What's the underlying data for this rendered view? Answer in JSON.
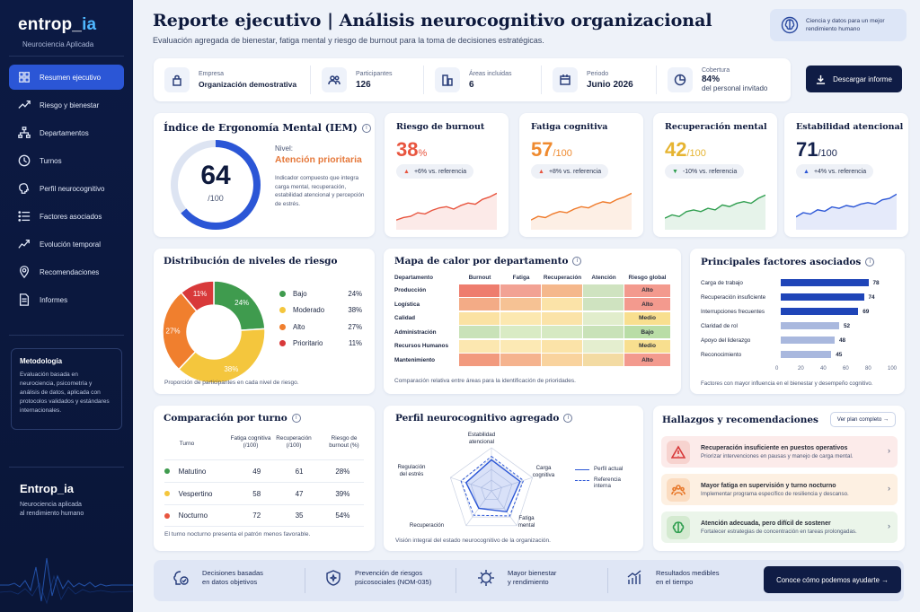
{
  "brand": {
    "name_main": "entrop_",
    "name_accent": "ia",
    "subtitle": "Neurociencia Aplicada"
  },
  "nav": [
    {
      "label": "Resumen ejecutivo",
      "icon": "grid-icon",
      "active": true
    },
    {
      "label": "Riesgo y bienestar",
      "icon": "trend-icon"
    },
    {
      "label": "Departamentos",
      "icon": "org-chart-icon"
    },
    {
      "label": "Turnos",
      "icon": "clock-icon"
    },
    {
      "label": "Perfil neurocognitivo",
      "icon": "brain-icon"
    },
    {
      "label": "Factores asociados",
      "icon": "list-icon"
    },
    {
      "label": "Evolución temporal",
      "icon": "line-chart-icon"
    },
    {
      "label": "Recomendaciones",
      "icon": "bulb-icon"
    },
    {
      "label": "Informes",
      "icon": "document-icon"
    }
  ],
  "methodology": {
    "title": "Metodología",
    "text": "Evaluación basada en neurociencia, psicometría y análisis de datos, aplicada con protocolos validados y estándares internacionales."
  },
  "side_brand": {
    "title": "Entrop_ia",
    "line1": "Neurociencia aplicada",
    "line2": "al rendimiento humano"
  },
  "header": {
    "title": "Reporte ejecutivo | Análisis neurocognitivo organizacional",
    "subtitle": "Evaluación agregada de bienestar, fatiga mental y riesgo de burnout para la toma de decisiones estratégicas.",
    "badge_line1": "Ciencia y datos para un mejor",
    "badge_line2": "rendimiento humano"
  },
  "info": {
    "empresa_label": "Empresa",
    "empresa": "Organización demostrativa",
    "participantes_label": "Participantes",
    "participantes": "126",
    "areas_label": "Áreas incluidas",
    "areas": "6",
    "periodo_label": "Periodo",
    "periodo": "Junio 2026",
    "cobertura_label": "Cobertura",
    "cobertura": "84%",
    "cobertura_extra": "del personal invitado"
  },
  "download_label": "Descargar informe",
  "iem": {
    "title": "Índice de Ergonomía Mental (IEM)",
    "value": "64",
    "max": "/100",
    "fraction": 0.64,
    "level_label": "Nivel:",
    "level": "Atención prioritaria",
    "description": "Indicador compuesto que integra carga mental, recuperación, estabilidad atencional y percepción de estrés."
  },
  "kpis": [
    {
      "title": "Riesgo de burnout",
      "value": "38",
      "unit": "%",
      "color": "#e8553f",
      "delta": "+6% vs. referencia",
      "dir": "up",
      "tri_color": "#e8553f",
      "spark": [
        8,
        10,
        11,
        14,
        13,
        16,
        18,
        19,
        17,
        20,
        22,
        21,
        25,
        27,
        30
      ],
      "spark_color": "#e8553f"
    },
    {
      "title": "Fatiga cognitiva",
      "value": "57",
      "unit": "/100",
      "color": "#ef8a2f",
      "delta": "+8% vs. referencia",
      "dir": "up",
      "tri_color": "#e8553f",
      "spark": [
        8,
        11,
        10,
        13,
        15,
        14,
        17,
        19,
        18,
        21,
        23,
        22,
        25,
        27,
        30
      ],
      "spark_color": "#ef7a2a"
    },
    {
      "title": "Recuperación mental",
      "value": "42",
      "unit": "/100",
      "color": "#e6b431",
      "delta": "-10% vs. referencia",
      "dir": "down",
      "tri_color": "#2f9e4f",
      "spark": [
        7,
        9,
        8,
        11,
        12,
        11,
        13,
        12,
        15,
        14,
        16,
        17,
        16,
        19,
        21
      ],
      "spark_color": "#2f9e4f"
    },
    {
      "title": "Estabilidad atencional",
      "value": "71",
      "unit": "/100",
      "color": "#14224d",
      "delta": "+4% vs. referencia",
      "dir": "up",
      "tri_color": "#2b56d6",
      "spark": [
        9,
        12,
        11,
        14,
        13,
        16,
        15,
        17,
        16,
        18,
        19,
        18,
        21,
        22,
        25
      ],
      "spark_color": "#2b56d6"
    }
  ],
  "distribution": {
    "title": "Distribución de niveles de riesgo",
    "note": "Proporción de participantes en cada nivel de riesgo.",
    "items": [
      {
        "label": "Bajo",
        "value": 24,
        "pct": "24%",
        "color": "#3f9b4e"
      },
      {
        "label": "Moderado",
        "value": 38,
        "pct": "38%",
        "color": "#f4c63d"
      },
      {
        "label": "Alto",
        "value": 27,
        "pct": "27%",
        "color": "#f07f2e"
      },
      {
        "label": "Prioritario",
        "value": 11,
        "pct": "11%",
        "color": "#d8393a"
      }
    ]
  },
  "heatmap": {
    "title": "Mapa de calor por departamento",
    "note": "Comparación relativa entre áreas para la identificación de prioridades.",
    "columns": [
      "Departamento",
      "Burnout",
      "Fatiga",
      "Recuperación",
      "Atención",
      "Riesgo global"
    ],
    "rows": [
      {
        "dept": "Producción",
        "cells": [
          "#ee7d6e",
          "#f2a294",
          "#f5b88c",
          "#cfe3c0"
        ],
        "global": "Alto",
        "global_color": "#f39a8e"
      },
      {
        "dept": "Logística",
        "cells": [
          "#f3ab86",
          "#f6c294",
          "#fbe3a8",
          "#cfe3c0"
        ],
        "global": "Alto",
        "global_color": "#f39a8e"
      },
      {
        "dept": "Calidad",
        "cells": [
          "#fbe2a3",
          "#fce8b0",
          "#fbe3a8",
          "#e1edcc"
        ],
        "global": "Medio",
        "global_color": "#f8df8f"
      },
      {
        "dept": "Administración",
        "cells": [
          "#c9e2b8",
          "#d9ebc4",
          "#d6e9c2",
          "#c9e2b8"
        ],
        "global": "Bajo",
        "global_color": "#b9dda6"
      },
      {
        "dept": "Recursos Humanos",
        "cells": [
          "#fce7b0",
          "#fce9b4",
          "#fbe3a8",
          "#e4eecf"
        ],
        "global": "Medio",
        "global_color": "#f8df8f"
      },
      {
        "dept": "Mantenimiento",
        "cells": [
          "#f29a7e",
          "#f5b38e",
          "#f9d39e",
          "#f3dba3"
        ],
        "global": "Alto",
        "global_color": "#f39a8e"
      }
    ]
  },
  "factors": {
    "title": "Principales factores asociados",
    "note": "Factores con mayor influencia en el bienestar y desempeño cognitivo.",
    "axis": [
      "0",
      "20",
      "40",
      "60",
      "80",
      "100"
    ],
    "items": [
      {
        "label": "Carga de trabajo",
        "value": 78,
        "color": "#1f45b8"
      },
      {
        "label": "Recuperación insuficiente",
        "value": 74,
        "color": "#1f45b8"
      },
      {
        "label": "Interrupciones frecuentes",
        "value": 69,
        "color": "#1f45b8"
      },
      {
        "label": "Claridad de rol",
        "value": 52,
        "color": "#a9b8de"
      },
      {
        "label": "Apoyo del liderazgo",
        "value": 48,
        "color": "#a9b8de"
      },
      {
        "label": "Reconocimiento",
        "value": 45,
        "color": "#a9b8de"
      }
    ]
  },
  "shift": {
    "title": "Comparación por turno",
    "note": "El turno nocturno presenta el patrón menos favorable.",
    "headers": [
      "Turno",
      "Fatiga cognitiva (/100)",
      "Recuperación (/100)",
      "Riesgo de burnout (%)"
    ],
    "rows": [
      {
        "name": "Matutino",
        "color": "#3f9b4e",
        "fatiga": "49",
        "recup": "61",
        "riesgo": "28%"
      },
      {
        "name": "Vespertino",
        "color": "#f4c63d",
        "fatiga": "58",
        "recup": "47",
        "riesgo": "39%"
      },
      {
        "name": "Nocturno",
        "color": "#e8553f",
        "fatiga": "72",
        "recup": "35",
        "riesgo": "54%"
      }
    ]
  },
  "radar": {
    "title": "Perfil neurocognitivo agregado",
    "note": "Visión integral del estado neurocognitivo de la organización.",
    "axes": [
      "Estabilidad atencional",
      "Carga cognitiva",
      "Fatiga mental",
      "Recuperación",
      "Regulación del estrés"
    ],
    "actual": [
      0.72,
      0.7,
      0.6,
      0.5,
      0.62
    ],
    "reference": [
      0.8,
      0.78,
      0.72,
      0.7,
      0.74
    ],
    "legend_actual": "Perfil actual",
    "legend_ref_1": "Referencia",
    "legend_ref_2": "interna"
  },
  "findings": {
    "title": "Hallazgos y recomendaciones",
    "plan_label": "Ver plan completo →",
    "items": [
      {
        "title": "Recuperación insuficiente en puestos operativos",
        "text": "Priorizar intervenciones en pausas y manejo de carga mental.",
        "bg": "#fcebea",
        "icon_bg": "#f7d3cf",
        "icon_color": "#d8393a",
        "icon": "warning-icon"
      },
      {
        "title": "Mayor fatiga en supervisión y turno nocturno",
        "text": "Implementar programa específico de resiliencia y descanso.",
        "bg": "#fdf0e2",
        "icon_bg": "#fbdcc0",
        "icon_color": "#e8782a",
        "icon": "team-icon"
      },
      {
        "title": "Atención adecuada, pero difícil de sostener",
        "text": "Fortalecer estrategias de concentración en tareas prolongadas.",
        "bg": "#ebf5ea",
        "icon_bg": "#d4ead0",
        "icon_color": "#2f9e4f",
        "icon": "brain-icon"
      }
    ]
  },
  "bottom": {
    "items": [
      {
        "l1": "Decisiones basadas",
        "l2": "en datos objetivos"
      },
      {
        "l1": "Prevención de riesgos",
        "l2": "psicosociales (NOM-035)"
      },
      {
        "l1": "Mayor bienestar",
        "l2": "y rendimiento"
      },
      {
        "l1": "Resultados medibles",
        "l2": "en el tiempo"
      }
    ],
    "cta": "Conoce cómo podemos ayudarte →"
  }
}
